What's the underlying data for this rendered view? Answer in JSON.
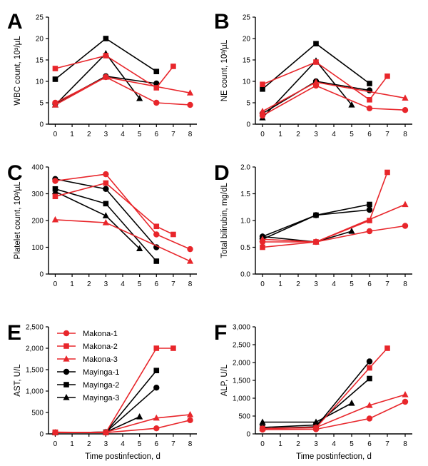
{
  "chart_data": [
    {
      "panel": "A",
      "type": "line",
      "ylabel": "WBC count, 10³/µL",
      "ylim": [
        0,
        25
      ],
      "yticks": [
        "0",
        "5",
        "10",
        "15",
        "20",
        "25"
      ],
      "xlim": [
        -0.4,
        8.4
      ],
      "xticks": [
        "0",
        "1",
        "2",
        "3",
        "4",
        "5",
        "6",
        "7",
        "8"
      ],
      "xlabel": "",
      "series": [
        {
          "name": "Makona-1",
          "x": [
            0,
            3,
            6,
            8
          ],
          "y": [
            5.0,
            11.0,
            5.0,
            4.5
          ]
        },
        {
          "name": "Makona-2",
          "x": [
            0,
            3,
            6,
            7
          ],
          "y": [
            13.0,
            16.0,
            8.5,
            13.5
          ]
        },
        {
          "name": "Makona-3",
          "x": [
            0,
            3,
            8
          ],
          "y": [
            4.5,
            11.0,
            7.3
          ]
        },
        {
          "name": "Mayinga-1",
          "x": [
            0,
            3,
            6
          ],
          "y": [
            4.8,
            11.2,
            9.5
          ]
        },
        {
          "name": "Mayinga-2",
          "x": [
            0,
            3,
            6
          ],
          "y": [
            10.5,
            20.0,
            12.3
          ]
        },
        {
          "name": "Mayinga-3",
          "x": [
            0,
            3,
            5
          ],
          "y": [
            4.5,
            16.5,
            6.0
          ]
        }
      ]
    },
    {
      "panel": "B",
      "type": "line",
      "ylabel": "NE count, 10³/µL",
      "ylim": [
        0,
        25
      ],
      "yticks": [
        "0",
        "5",
        "10",
        "15",
        "20",
        "25"
      ],
      "xlim": [
        -0.4,
        8.4
      ],
      "xticks": [
        "0",
        "1",
        "2",
        "3",
        "4",
        "5",
        "6",
        "7",
        "8"
      ],
      "xlabel": "",
      "series": [
        {
          "name": "Makona-1",
          "x": [
            0,
            3,
            6,
            8
          ],
          "y": [
            2.0,
            9.0,
            3.7,
            3.3
          ]
        },
        {
          "name": "Makona-2",
          "x": [
            0,
            3,
            6,
            7
          ],
          "y": [
            9.3,
            14.5,
            5.7,
            11.2
          ]
        },
        {
          "name": "Makona-3",
          "x": [
            0,
            3,
            8
          ],
          "y": [
            3.0,
            9.8,
            6.1
          ]
        },
        {
          "name": "Mayinga-1",
          "x": [
            0,
            3,
            6
          ],
          "y": [
            2.5,
            10.0,
            7.9
          ]
        },
        {
          "name": "Mayinga-2",
          "x": [
            0,
            3,
            6
          ],
          "y": [
            8.2,
            18.8,
            9.5
          ]
        },
        {
          "name": "Mayinga-3",
          "x": [
            0,
            3,
            5
          ],
          "y": [
            1.5,
            14.8,
            4.5
          ]
        }
      ]
    },
    {
      "panel": "C",
      "type": "line",
      "ylabel": "Platelet count, 10³/µL",
      "ylim": [
        0,
        400
      ],
      "yticks": [
        "0",
        "100",
        "200",
        "300",
        "400"
      ],
      "xlim": [
        -0.4,
        8.4
      ],
      "xticks": [
        "0",
        "1",
        "2",
        "3",
        "4",
        "5",
        "6",
        "7",
        "8"
      ],
      "xlabel": "",
      "series": [
        {
          "name": "Makona-1",
          "x": [
            0,
            3,
            6,
            8
          ],
          "y": [
            348,
            373,
            148,
            93
          ]
        },
        {
          "name": "Makona-2",
          "x": [
            0,
            3,
            6,
            7
          ],
          "y": [
            290,
            340,
            178,
            148
          ]
        },
        {
          "name": "Makona-3",
          "x": [
            0,
            3,
            8
          ],
          "y": [
            203,
            192,
            48
          ]
        },
        {
          "name": "Mayinga-1",
          "x": [
            0,
            3,
            6
          ],
          "y": [
            355,
            318,
            100
          ]
        },
        {
          "name": "Mayinga-2",
          "x": [
            0,
            3,
            6
          ],
          "y": [
            318,
            263,
            48
          ]
        },
        {
          "name": "Mayinga-3",
          "x": [
            0,
            3,
            5
          ],
          "y": [
            308,
            218,
            95
          ]
        }
      ]
    },
    {
      "panel": "D",
      "type": "line",
      "ylabel": "Total bilirubin, mg/dL",
      "ylim": [
        0,
        2.0
      ],
      "yticks": [
        "0.0",
        "0.5",
        "1.0",
        "1.5",
        "2.0"
      ],
      "xlim": [
        -0.4,
        8.4
      ],
      "xticks": [
        "0",
        "1",
        "2",
        "3",
        "4",
        "5",
        "6",
        "7",
        "8"
      ],
      "xlabel": "",
      "series": [
        {
          "name": "Makona-1",
          "x": [
            0,
            3,
            6,
            8
          ],
          "y": [
            0.6,
            0.6,
            0.8,
            0.9
          ]
        },
        {
          "name": "Makona-2",
          "x": [
            0,
            3,
            6,
            7
          ],
          "y": [
            0.5,
            0.6,
            1.0,
            1.9
          ]
        },
        {
          "name": "Makona-3",
          "x": [
            0,
            3,
            8
          ],
          "y": [
            0.65,
            0.6,
            1.3
          ]
        },
        {
          "name": "Mayinga-1",
          "x": [
            0,
            3,
            6
          ],
          "y": [
            0.7,
            1.1,
            1.2
          ]
        },
        {
          "name": "Mayinga-2",
          "x": [
            0,
            3,
            6
          ],
          "y": [
            0.65,
            1.1,
            1.3
          ]
        },
        {
          "name": "Mayinga-3",
          "x": [
            0,
            3,
            5
          ],
          "y": [
            0.7,
            0.6,
            0.8
          ]
        }
      ]
    },
    {
      "panel": "E",
      "type": "line",
      "ylabel": "AST, U/L",
      "ylim": [
        0,
        2500
      ],
      "yticks": [
        "0",
        "500",
        "1,000",
        "1,500",
        "2,000",
        "2,500"
      ],
      "xlim": [
        -0.4,
        8.4
      ],
      "xticks": [
        "0",
        "1",
        "2",
        "3",
        "4",
        "5",
        "6",
        "7",
        "8"
      ],
      "xlabel": "Time postinfection, d",
      "series": [
        {
          "name": "Makona-1",
          "x": [
            0,
            3,
            6,
            8
          ],
          "y": [
            30,
            30,
            130,
            320
          ]
        },
        {
          "name": "Makona-2",
          "x": [
            0,
            3,
            6,
            7
          ],
          "y": [
            40,
            30,
            2000,
            2000
          ]
        },
        {
          "name": "Makona-3",
          "x": [
            0,
            3,
            6,
            8
          ],
          "y": [
            30,
            40,
            370,
            450
          ]
        },
        {
          "name": "Mayinga-1",
          "x": [
            0,
            3,
            6
          ],
          "y": [
            30,
            40,
            1080
          ]
        },
        {
          "name": "Mayinga-2",
          "x": [
            0,
            3,
            6
          ],
          "y": [
            30,
            40,
            1480
          ]
        },
        {
          "name": "Mayinga-3",
          "x": [
            0,
            3,
            5
          ],
          "y": [
            30,
            40,
            400
          ]
        }
      ]
    },
    {
      "panel": "F",
      "type": "line",
      "ylabel": "ALP, U/L",
      "ylim": [
        0,
        3000
      ],
      "yticks": [
        "0",
        "500",
        "1,000",
        "1,500",
        "2,000",
        "2,500",
        "3,000"
      ],
      "xlim": [
        -0.4,
        8.4
      ],
      "xticks": [
        "0",
        "1",
        "2",
        "3",
        "4",
        "5",
        "6",
        "7",
        "8"
      ],
      "xlabel": "Time postinfection, d",
      "series": [
        {
          "name": "Makona-1",
          "x": [
            0,
            3,
            6,
            8
          ],
          "y": [
            120,
            130,
            430,
            900
          ]
        },
        {
          "name": "Makona-2",
          "x": [
            0,
            3,
            6,
            7
          ],
          "y": [
            150,
            170,
            1850,
            2400
          ]
        },
        {
          "name": "Makona-3",
          "x": [
            0,
            3,
            6,
            8
          ],
          "y": [
            150,
            180,
            800,
            1100
          ]
        },
        {
          "name": "Mayinga-1",
          "x": [
            0,
            3,
            6
          ],
          "y": [
            150,
            200,
            2030
          ]
        },
        {
          "name": "Mayinga-2",
          "x": [
            0,
            3,
            6
          ],
          "y": [
            180,
            250,
            1550
          ]
        },
        {
          "name": "Mayinga-3",
          "x": [
            0,
            3,
            5
          ],
          "y": [
            330,
            330,
            860
          ]
        }
      ]
    }
  ],
  "legend": {
    "placement": "panel E, top-left",
    "entries": [
      {
        "name": "Makona-1",
        "color": "#e8262b",
        "marker": "circle"
      },
      {
        "name": "Makona-2",
        "color": "#e8262b",
        "marker": "square"
      },
      {
        "name": "Makona-3",
        "color": "#e8262b",
        "marker": "triangle"
      },
      {
        "name": "Mayinga-1",
        "color": "#000000",
        "marker": "circle"
      },
      {
        "name": "Mayinga-2",
        "color": "#000000",
        "marker": "square"
      },
      {
        "name": "Mayinga-3",
        "color": "#000000",
        "marker": "triangle"
      }
    ]
  },
  "colors": {
    "makona": "#e8262b",
    "mayinga": "#000000"
  }
}
